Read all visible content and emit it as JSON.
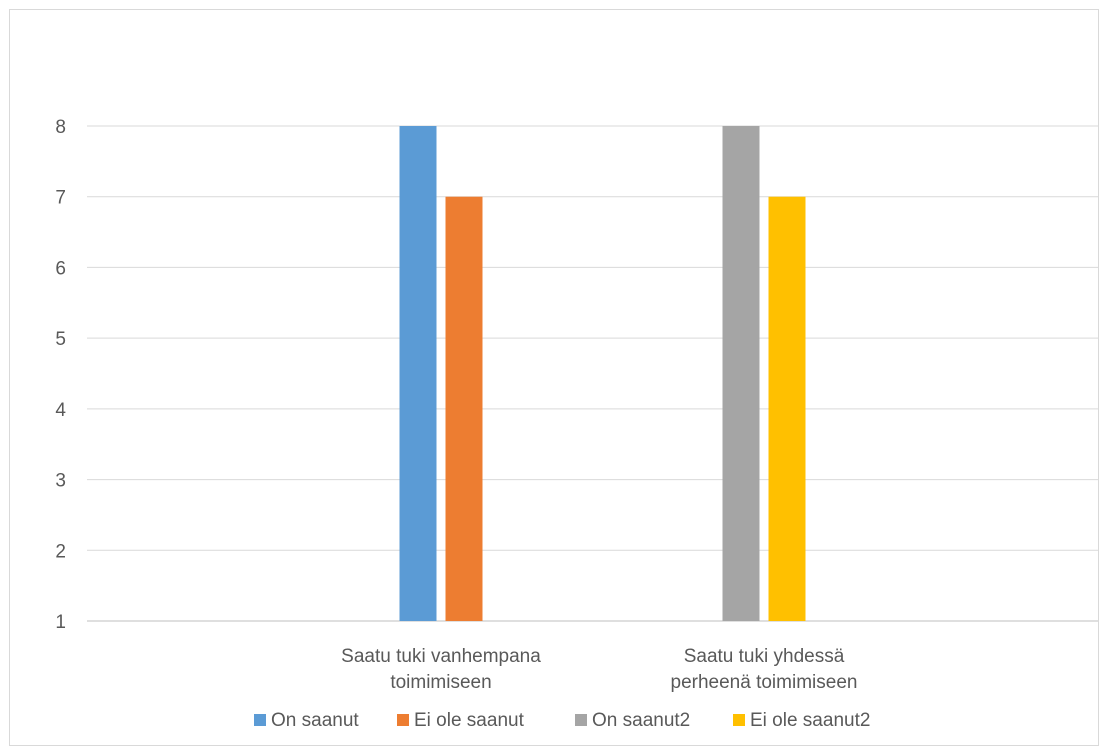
{
  "chart_data": {
    "type": "bar",
    "title": "",
    "xlabel": "",
    "ylabel": "",
    "ylim": [
      1,
      8
    ],
    "yticks": [
      1,
      2,
      3,
      4,
      5,
      6,
      7,
      8
    ],
    "grid": true,
    "legend_position": "bottom",
    "categories": [
      [
        "Saatu tuki vanhempana",
        "toimimiseen"
      ],
      [
        "Saatu tuki yhdessä",
        "perheenä toimimiseen"
      ]
    ],
    "series": [
      {
        "name": "On saanut",
        "color": "#5B9BD5",
        "values": [
          8,
          null
        ]
      },
      {
        "name": "Ei ole saanut",
        "color": "#ED7D31",
        "values": [
          7,
          null
        ]
      },
      {
        "name": "On saanut2",
        "color": "#A5A5A5",
        "values": [
          null,
          8
        ]
      },
      {
        "name": "Ei ole saanut2",
        "color": "#FFC000",
        "values": [
          null,
          7
        ]
      }
    ]
  }
}
